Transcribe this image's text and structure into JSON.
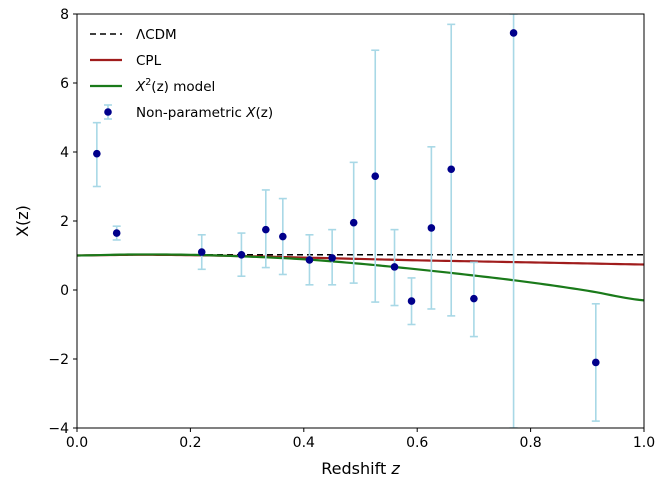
{
  "chart_data": {
    "type": "scatter",
    "title": "",
    "xlabel": "Redshift",
    "xlabel_var": "z",
    "ylabel": "X(z)",
    "xlim": [
      0.0,
      1.0
    ],
    "ylim": [
      -4,
      8
    ],
    "grid": false,
    "legend_position": "top-left",
    "x_ticks": [
      0.0,
      0.2,
      0.4,
      0.6,
      0.8,
      1.0
    ],
    "x_tick_labels": [
      "0.0",
      "0.2",
      "0.4",
      "0.6",
      "0.8",
      "1.0"
    ],
    "y_ticks": [
      -4,
      -2,
      0,
      2,
      4,
      6,
      8
    ],
    "y_tick_labels": [
      "−4",
      "−2",
      "0",
      "2",
      "4",
      "6",
      "8"
    ],
    "legend": [
      {
        "key": "lcdm",
        "label": "ΛCDM"
      },
      {
        "key": "cpl",
        "label": "CPL"
      },
      {
        "key": "x2",
        "label_parts": [
          "X",
          "2",
          "(z) model"
        ]
      },
      {
        "key": "np",
        "label_parts": [
          "Non-parametric ",
          "X",
          "(z)"
        ]
      }
    ],
    "colors": {
      "lcdm": "#000000",
      "cpl": "#a01c1c",
      "x2": "#1a7a1a",
      "points": "#00008b",
      "errorbars": "#a8d8e6"
    },
    "series": [
      {
        "name": "ΛCDM",
        "kind": "line",
        "style": "dashed",
        "x": [
          0.0,
          0.1,
          0.2,
          0.3,
          0.4,
          0.5,
          0.6,
          0.7,
          0.8,
          0.9,
          1.0
        ],
        "y": [
          1.0,
          1.02,
          1.02,
          1.02,
          1.02,
          1.02,
          1.02,
          1.02,
          1.02,
          1.02,
          1.02
        ]
      },
      {
        "name": "CPL",
        "kind": "line",
        "style": "solid",
        "x": [
          0.0,
          0.1,
          0.2,
          0.3,
          0.4,
          0.5,
          0.6,
          0.7,
          0.8,
          0.9,
          1.0
        ],
        "y": [
          1.0,
          1.02,
          1.01,
          0.98,
          0.94,
          0.9,
          0.86,
          0.83,
          0.8,
          0.77,
          0.74
        ]
      },
      {
        "name": "X²(z) model",
        "kind": "line",
        "style": "solid",
        "x": [
          0.0,
          0.1,
          0.2,
          0.3,
          0.4,
          0.5,
          0.6,
          0.7,
          0.8,
          0.9,
          1.0
        ],
        "y": [
          1.0,
          1.03,
          1.02,
          0.97,
          0.89,
          0.76,
          0.6,
          0.42,
          0.22,
          -0.02,
          -0.3
        ]
      },
      {
        "name": "Non-parametric X(z)",
        "kind": "errorbar",
        "points": [
          {
            "x": 0.035,
            "y": 3.95,
            "lo": 3.0,
            "hi": 4.85
          },
          {
            "x": 0.07,
            "y": 1.65,
            "lo": 1.45,
            "hi": 1.85
          },
          {
            "x": 0.22,
            "y": 1.1,
            "lo": 0.6,
            "hi": 1.6
          },
          {
            "x": 0.29,
            "y": 1.02,
            "lo": 0.4,
            "hi": 1.65
          },
          {
            "x": 0.333,
            "y": 1.75,
            "lo": 0.65,
            "hi": 2.9
          },
          {
            "x": 0.363,
            "y": 1.55,
            "lo": 0.45,
            "hi": 2.65
          },
          {
            "x": 0.41,
            "y": 0.87,
            "lo": 0.15,
            "hi": 1.6
          },
          {
            "x": 0.45,
            "y": 0.93,
            "lo": 0.15,
            "hi": 1.75
          },
          {
            "x": 0.488,
            "y": 1.95,
            "lo": 0.2,
            "hi": 3.7
          },
          {
            "x": 0.526,
            "y": 3.3,
            "lo": -0.35,
            "hi": 6.95
          },
          {
            "x": 0.56,
            "y": 0.67,
            "lo": -0.45,
            "hi": 1.75
          },
          {
            "x": 0.59,
            "y": -0.32,
            "lo": -1.0,
            "hi": 0.35
          },
          {
            "x": 0.625,
            "y": 1.8,
            "lo": -0.55,
            "hi": 4.15
          },
          {
            "x": 0.66,
            "y": 3.5,
            "lo": -0.75,
            "hi": 7.7
          },
          {
            "x": 0.7,
            "y": -0.25,
            "lo": -1.35,
            "hi": 0.8
          },
          {
            "x": 0.77,
            "y": 7.45,
            "lo": -4.0,
            "hi": 8.0
          },
          {
            "x": 0.915,
            "y": -2.1,
            "lo": -3.8,
            "hi": -0.4
          }
        ]
      }
    ]
  }
}
